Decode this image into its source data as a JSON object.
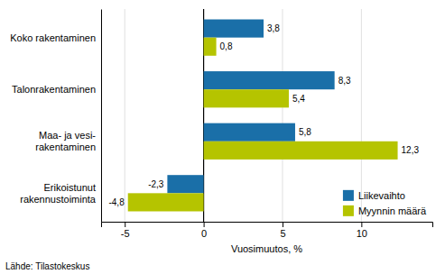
{
  "chart_data": {
    "type": "bar",
    "orientation": "horizontal",
    "categories": [
      "Erikoistunut\nrakennustoiminta",
      "Maa- ja vesi-\nrakentaminen",
      "Talonrakentaminen",
      "Koko rakentaminen"
    ],
    "series": [
      {
        "name": "Liikevaihto",
        "color": "#1a6fa8",
        "values": [
          -2.3,
          5.8,
          8.3,
          3.8
        ],
        "value_labels": [
          "-2,3",
          "5,8",
          "8,3",
          "3,8"
        ]
      },
      {
        "name": "Myynnin määrä",
        "color": "#b5c400",
        "values": [
          -4.8,
          12.3,
          5.4,
          0.8
        ],
        "value_labels": [
          "-4,8",
          "12,3",
          "5,4",
          "0,8"
        ]
      }
    ],
    "xlabel": "Vuosimuutos, %",
    "xlim": [
      -6.5,
      14.5
    ],
    "xticks": [
      -5,
      0,
      5,
      10
    ],
    "grid": true,
    "legend": "lower right",
    "data_labels": true,
    "annotations": [
      "Lähde: Tilastokeskus"
    ]
  }
}
